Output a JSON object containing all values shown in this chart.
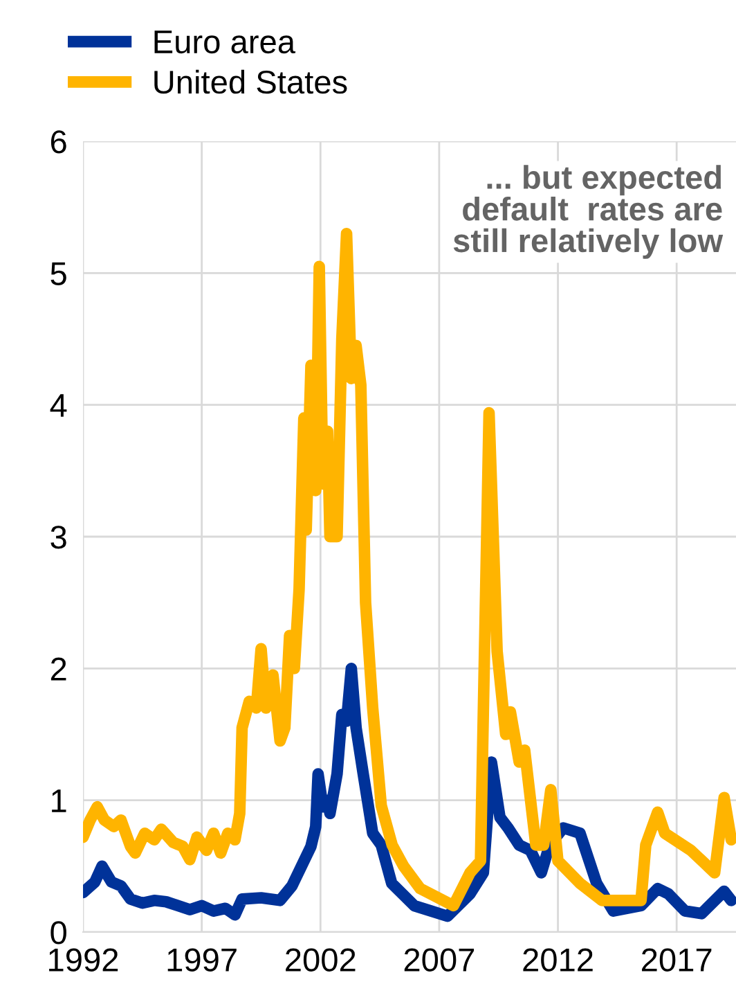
{
  "chart_data": {
    "type": "line",
    "xlim": [
      1992,
      2019.5
    ],
    "xticks": [
      1992,
      1997,
      2002,
      2007,
      2012,
      2017
    ],
    "ylim": [
      0,
      6
    ],
    "yticks": [
      0,
      1,
      2,
      3,
      4,
      5,
      6
    ],
    "grid": true,
    "legend": "top left",
    "annotations": [
      "... but expected\ndefault  rates are\nstill relatively low"
    ],
    "series": [
      {
        "name": "Euro area",
        "color": "#003299",
        "x": [
          1992.0,
          1992.5,
          1992.8,
          1993.2,
          1993.6,
          1994.0,
          1994.5,
          1995.0,
          1995.5,
          1996.0,
          1996.5,
          1997.0,
          1997.5,
          1998.0,
          1998.4,
          1998.7,
          1999.5,
          2000.3,
          2000.8,
          2001.2,
          2001.6,
          2001.8,
          2001.9,
          2002.1,
          2002.3,
          2002.4,
          2002.7,
          2002.9,
          2003.1,
          2003.3,
          2003.5,
          2003.8,
          2004.2,
          2004.56,
          2005.0,
          2005.95,
          2006.65,
          2007.35,
          2008.3,
          2008.86,
          2009.2,
          2009.56,
          2009.9,
          2010.37,
          2010.84,
          2011.3,
          2011.65,
          2012.23,
          2012.93,
          2013.63,
          2014.33,
          2015.5,
          2016.2,
          2016.65,
          2017.35,
          2018.05,
          2019.0,
          2019.3
        ],
        "values": [
          0.3,
          0.38,
          0.5,
          0.38,
          0.35,
          0.25,
          0.22,
          0.24,
          0.23,
          0.2,
          0.17,
          0.2,
          0.16,
          0.18,
          0.13,
          0.25,
          0.26,
          0.24,
          0.35,
          0.5,
          0.65,
          0.8,
          1.2,
          0.95,
          1.0,
          0.9,
          1.2,
          1.65,
          1.6,
          2.0,
          1.55,
          1.2,
          0.75,
          0.66,
          0.37,
          0.2,
          0.16,
          0.12,
          0.29,
          0.45,
          1.29,
          0.87,
          0.79,
          0.66,
          0.62,
          0.45,
          0.66,
          0.79,
          0.75,
          0.37,
          0.16,
          0.2,
          0.33,
          0.29,
          0.16,
          0.14,
          0.31,
          0.24
        ]
      },
      {
        "name": "United States",
        "color": "#ffb400",
        "x": [
          1992.0,
          1992.3,
          1992.6,
          1992.9,
          1993.3,
          1993.6,
          1994.0,
          1994.2,
          1994.6,
          1995.0,
          1995.3,
          1995.8,
          1996.2,
          1996.5,
          1996.8,
          1997.2,
          1997.5,
          1997.8,
          1998.1,
          1998.4,
          1998.6,
          1998.7,
          1999.0,
          1999.3,
          1999.5,
          1999.7,
          2000.0,
          2000.3,
          2000.5,
          2000.7,
          2000.9,
          2001.1,
          2001.3,
          2001.4,
          2001.6,
          2001.8,
          2001.95,
          2002.1,
          2002.3,
          2002.4,
          2002.7,
          2002.9,
          2003.1,
          2003.3,
          2003.5,
          2003.7,
          2003.9,
          2004.2,
          2004.56,
          2005.02,
          2005.5,
          2006.2,
          2007.6,
          2008.3,
          2008.74,
          2009.1,
          2009.44,
          2009.8,
          2010.0,
          2010.37,
          2010.6,
          2011.07,
          2011.4,
          2011.7,
          2012.0,
          2012.93,
          2013.86,
          2015.5,
          2015.7,
          2016.2,
          2016.5,
          2017.6,
          2018.6,
          2019.0,
          2019.3
        ],
        "values": [
          0.72,
          0.85,
          0.95,
          0.85,
          0.8,
          0.85,
          0.65,
          0.6,
          0.75,
          0.7,
          0.78,
          0.68,
          0.65,
          0.55,
          0.72,
          0.62,
          0.75,
          0.6,
          0.75,
          0.7,
          0.9,
          1.55,
          1.75,
          1.7,
          2.15,
          1.7,
          1.95,
          1.45,
          1.55,
          2.25,
          2.0,
          2.6,
          3.9,
          3.05,
          4.3,
          3.35,
          5.05,
          3.4,
          3.8,
          3.0,
          3.0,
          4.5,
          5.3,
          4.2,
          4.45,
          4.15,
          2.5,
          1.7,
          0.96,
          0.66,
          0.5,
          0.33,
          0.2,
          0.45,
          0.54,
          3.94,
          2.13,
          1.5,
          1.67,
          1.29,
          1.38,
          0.66,
          0.66,
          1.08,
          0.54,
          0.37,
          0.24,
          0.24,
          0.66,
          0.91,
          0.75,
          0.62,
          0.45,
          1.02,
          0.7
        ]
      }
    ]
  }
}
